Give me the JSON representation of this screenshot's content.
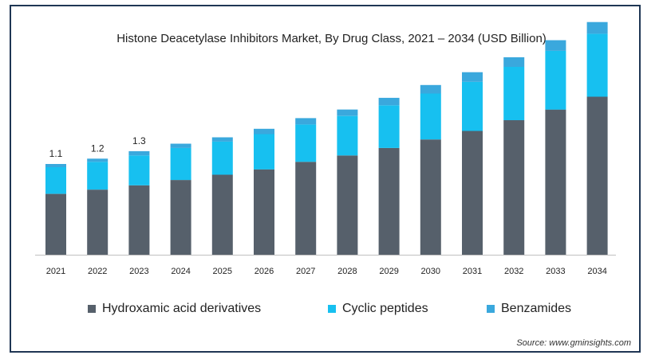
{
  "chart_data": {
    "type": "bar",
    "stacked": true,
    "title": "Histone Deacetylase Inhibitors Market, By Drug Class, 2021 – 2034 (USD Billion)",
    "categories": [
      "2021",
      "2022",
      "2023",
      "2024",
      "2025",
      "2026",
      "2027",
      "2028",
      "2029",
      "2030",
      "2031",
      "2032",
      "2033",
      "2034"
    ],
    "series": [
      {
        "name": "Hydroxamic acid derivatives",
        "color": "#56606b",
        "values": [
          0.57,
          0.61,
          0.65,
          0.7,
          0.75,
          0.8,
          0.87,
          0.93,
          1.0,
          1.08,
          1.16,
          1.26,
          1.36,
          1.48
        ]
      },
      {
        "name": "Cyclic peptides",
        "color": "#17c0f0",
        "values": [
          0.25,
          0.26,
          0.28,
          0.3,
          0.31,
          0.33,
          0.35,
          0.37,
          0.4,
          0.43,
          0.46,
          0.5,
          0.55,
          0.59
        ]
      },
      {
        "name": "Benzamides",
        "color": "#3aa8dd",
        "values": [
          0.03,
          0.03,
          0.04,
          0.04,
          0.04,
          0.05,
          0.06,
          0.06,
          0.07,
          0.08,
          0.09,
          0.09,
          0.1,
          0.11
        ]
      }
    ],
    "data_labels": [
      {
        "category": "2021",
        "text": "1.1"
      },
      {
        "category": "2022",
        "text": "1.2"
      },
      {
        "category": "2023",
        "text": "1.3"
      }
    ],
    "ylim": [
      0,
      2.2
    ],
    "grid": false,
    "legend_position": "bottom"
  },
  "source_text": "Source: www.gminsights.com"
}
